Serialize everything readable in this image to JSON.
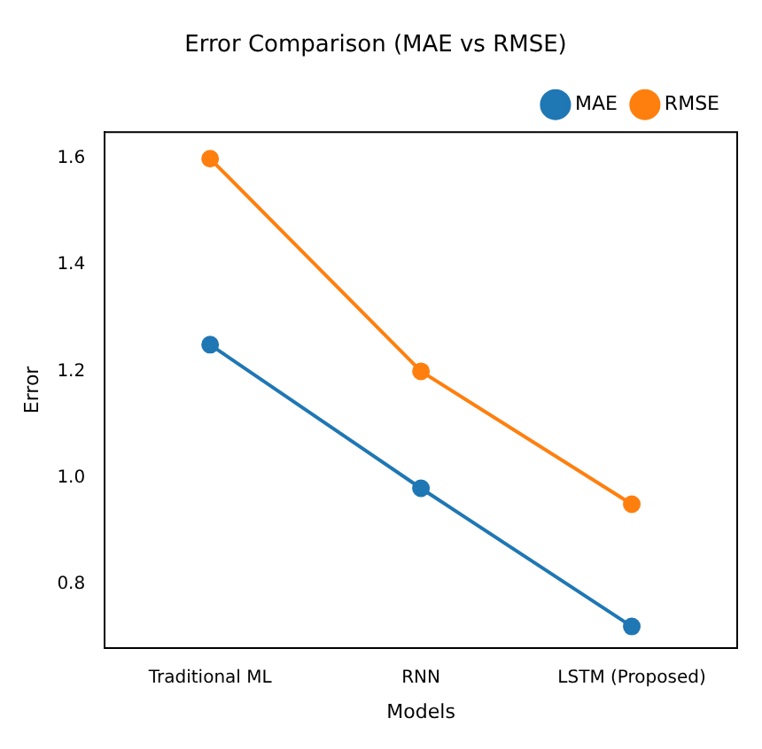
{
  "chart_data": {
    "type": "line",
    "title": "Error Comparison (MAE vs RMSE)",
    "xlabel": "Models",
    "ylabel": "Error",
    "categories": [
      "Traditional ML",
      "RNN",
      "LSTM (Proposed)"
    ],
    "series": [
      {
        "name": "MAE",
        "color": "#1f77b4",
        "values": [
          1.25,
          0.98,
          0.72
        ]
      },
      {
        "name": "RMSE",
        "color": "#ff7f0e",
        "values": [
          1.6,
          1.2,
          0.95
        ]
      }
    ],
    "ylim": [
      0.68,
      1.65
    ],
    "yticks": [
      0.8,
      {
        "value": 1,
        "label": "1.0"
      },
      1.2,
      1.4,
      1.6
    ],
    "grid": false,
    "legend": "top right",
    "marker": "circle",
    "line_style": "solid"
  }
}
